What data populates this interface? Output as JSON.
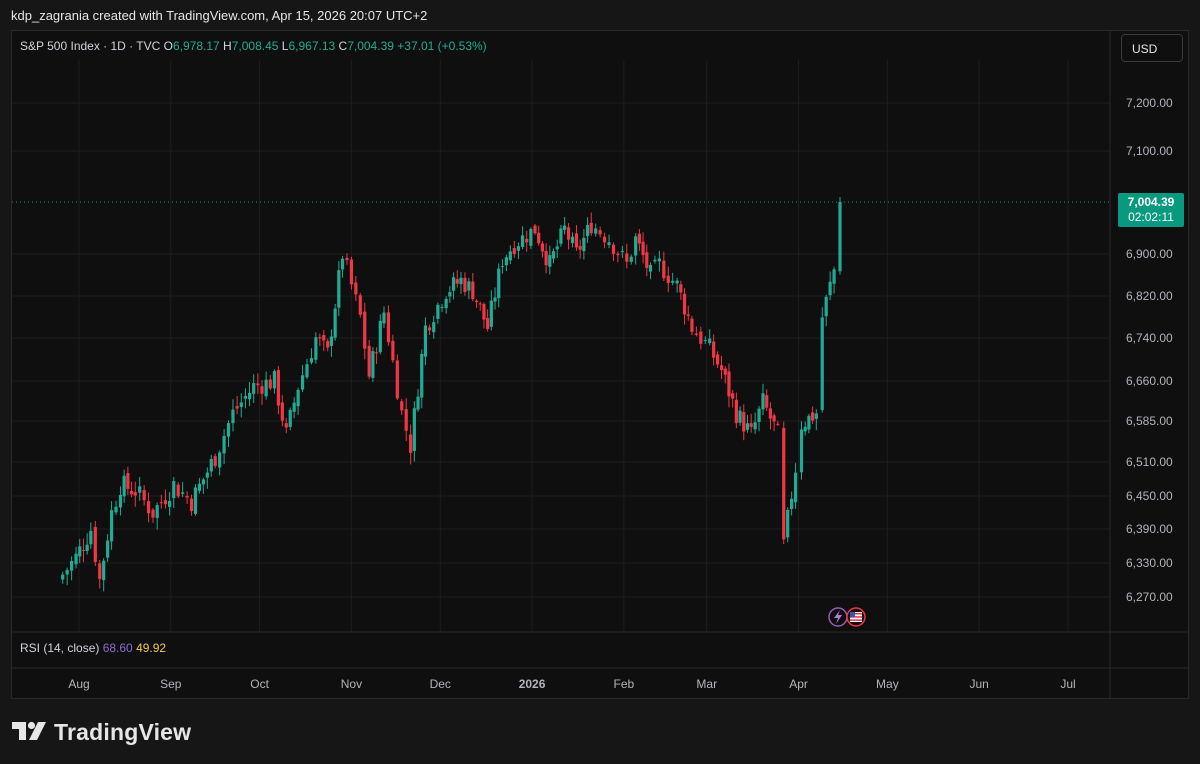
{
  "header": {
    "created_by": "kdp_zagrania created with TradingView.com, Apr 15, 2026 20:07 UTC+2"
  },
  "legend": {
    "symbol": "S&P 500 Index · 1D · TVC",
    "open_label": "O",
    "open": "6,978.17",
    "high_label": "H",
    "high": "7,008.45",
    "low_label": "L",
    "low": "6,967.13",
    "close_label": "C",
    "close": "7,004.39",
    "change": "+37.01 (+0.53%)"
  },
  "currency_button": "USD",
  "price_badge": {
    "price": "7,004.39",
    "countdown": "02:02:11"
  },
  "rsi": {
    "label": "RSI (14, close)",
    "value1": "68.60",
    "value2": "49.92"
  },
  "brand": {
    "name": "TradingView"
  },
  "colors": {
    "up": "#22ab94",
    "down": "#f23645",
    "background": "#0f0f0f",
    "badge": "#089981"
  },
  "chart_data": {
    "type": "candlestick",
    "symbol": "S&P 500 Index",
    "interval": "1D",
    "y_ticks": [
      6270,
      6330,
      6390,
      6450,
      6510,
      6585,
      6660,
      6740,
      6820,
      6900,
      7100,
      7200
    ],
    "y_tick_labels": [
      "6,270.00",
      "6,330.00",
      "6,390.00",
      "6,450.00",
      "6,510.00",
      "6,585.00",
      "6,660.00",
      "6,740.00",
      "6,820.00",
      "6,900.00",
      "7,100.00",
      "7,200.00"
    ],
    "x_ticks": [
      "Aug",
      "Sep",
      "Oct",
      "Nov",
      "Dec",
      "2026",
      "Feb",
      "Mar",
      "Apr",
      "May",
      "Jun",
      "Jul"
    ],
    "x_tick_dates": [
      "2025-08-01",
      "2025-09-01",
      "2025-10-01",
      "2025-11-01",
      "2025-12-01",
      "2026-01-01",
      "2026-02-01",
      "2026-03-01",
      "2026-04-01",
      "2026-05-01",
      "2026-06-01",
      "2026-07-01"
    ],
    "last_price": 7004.39,
    "series": [
      {
        "date": "2025-07-25",
        "close": 6300
      },
      {
        "date": "2025-07-31",
        "close": 6340
      },
      {
        "date": "2025-08-05",
        "close": 6390
      },
      {
        "date": "2025-08-08",
        "close": 6300
      },
      {
        "date": "2025-08-12",
        "close": 6420
      },
      {
        "date": "2025-08-15",
        "close": 6470
      },
      {
        "date": "2025-08-20",
        "close": 6460
      },
      {
        "date": "2025-08-26",
        "close": 6420
      },
      {
        "date": "2025-09-02",
        "close": 6470
      },
      {
        "date": "2025-09-08",
        "close": 6440
      },
      {
        "date": "2025-09-12",
        "close": 6480
      },
      {
        "date": "2025-09-16",
        "close": 6520
      },
      {
        "date": "2025-09-22",
        "close": 6600
      },
      {
        "date": "2025-09-29",
        "close": 6650
      },
      {
        "date": "2025-10-06",
        "close": 6660
      },
      {
        "date": "2025-10-10",
        "close": 6560
      },
      {
        "date": "2025-10-14",
        "close": 6650
      },
      {
        "date": "2025-10-20",
        "close": 6740
      },
      {
        "date": "2025-10-24",
        "close": 6710
      },
      {
        "date": "2025-10-29",
        "close": 6900
      },
      {
        "date": "2025-11-04",
        "close": 6780
      },
      {
        "date": "2025-11-07",
        "close": 6670
      },
      {
        "date": "2025-11-12",
        "close": 6790
      },
      {
        "date": "2025-11-18",
        "close": 6600
      },
      {
        "date": "2025-11-21",
        "close": 6540
      },
      {
        "date": "2025-11-26",
        "close": 6760
      },
      {
        "date": "2025-12-03",
        "close": 6830
      },
      {
        "date": "2025-12-08",
        "close": 6850
      },
      {
        "date": "2025-12-12",
        "close": 6830
      },
      {
        "date": "2025-12-17",
        "close": 6760
      },
      {
        "date": "2025-12-22",
        "close": 6890
      },
      {
        "date": "2025-12-26",
        "close": 6920
      },
      {
        "date": "2026-01-02",
        "close": 6950
      },
      {
        "date": "2026-01-07",
        "close": 6880
      },
      {
        "date": "2026-01-12",
        "close": 6950
      },
      {
        "date": "2026-01-16",
        "close": 6900
      },
      {
        "date": "2026-01-21",
        "close": 6960
      },
      {
        "date": "2026-01-27",
        "close": 6930
      },
      {
        "date": "2026-02-02",
        "close": 6880
      },
      {
        "date": "2026-02-05",
        "close": 6930
      },
      {
        "date": "2026-02-10",
        "close": 6860
      },
      {
        "date": "2026-02-13",
        "close": 6880
      },
      {
        "date": "2026-02-19",
        "close": 6840
      },
      {
        "date": "2026-02-24",
        "close": 6760
      },
      {
        "date": "2026-03-02",
        "close": 6720
      },
      {
        "date": "2026-03-06",
        "close": 6680
      },
      {
        "date": "2026-03-11",
        "close": 6600
      },
      {
        "date": "2026-03-16",
        "close": 6560
      },
      {
        "date": "2026-03-20",
        "close": 6620
      },
      {
        "date": "2026-03-25",
        "close": 6560
      },
      {
        "date": "2026-03-27",
        "close": 6360
      },
      {
        "date": "2026-03-31",
        "close": 6500
      },
      {
        "date": "2026-04-02",
        "close": 6580
      },
      {
        "date": "2026-04-07",
        "close": 6600
      },
      {
        "date": "2026-04-09",
        "close": 6780
      },
      {
        "date": "2026-04-13",
        "close": 6870
      },
      {
        "date": "2026-04-15",
        "close": 7004.39
      }
    ]
  }
}
